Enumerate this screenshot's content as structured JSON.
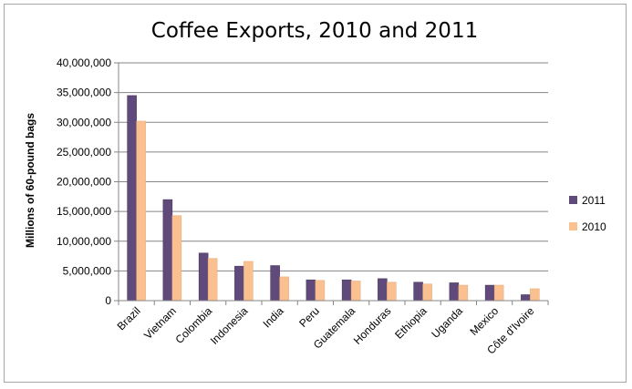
{
  "chart_data": {
    "type": "bar",
    "title": "Coffee Exports, 2010 and 2011",
    "ylabel": "Millions of 60-pound bags",
    "xlabel": "",
    "ylim": [
      0,
      40000000
    ],
    "yticks": [
      "0",
      "5,000,000",
      "10,000,000",
      "15,000,000",
      "20,000,000",
      "25,000,000",
      "30,000,000",
      "35,000,000",
      "40,000,000"
    ],
    "grid": true,
    "legend_position": "right",
    "categories": [
      "Brazil",
      "Vietnam",
      "Colombia",
      "Indonesia",
      "India",
      "Peru",
      "Guatemala",
      "Honduras",
      "Ethiopia",
      "Uganda",
      "Mexico",
      "Côte d'Ivoire"
    ],
    "series": [
      {
        "name": "2011",
        "color": "#604a7b",
        "values": [
          34500000,
          17000000,
          8000000,
          5800000,
          5900000,
          3500000,
          3500000,
          3700000,
          3100000,
          3000000,
          2600000,
          1000000
        ]
      },
      {
        "name": "2010",
        "color": "#fac090",
        "values": [
          30200000,
          14300000,
          7100000,
          6600000,
          4000000,
          3400000,
          3300000,
          3100000,
          2800000,
          2600000,
          2600000,
          2000000
        ]
      }
    ]
  }
}
